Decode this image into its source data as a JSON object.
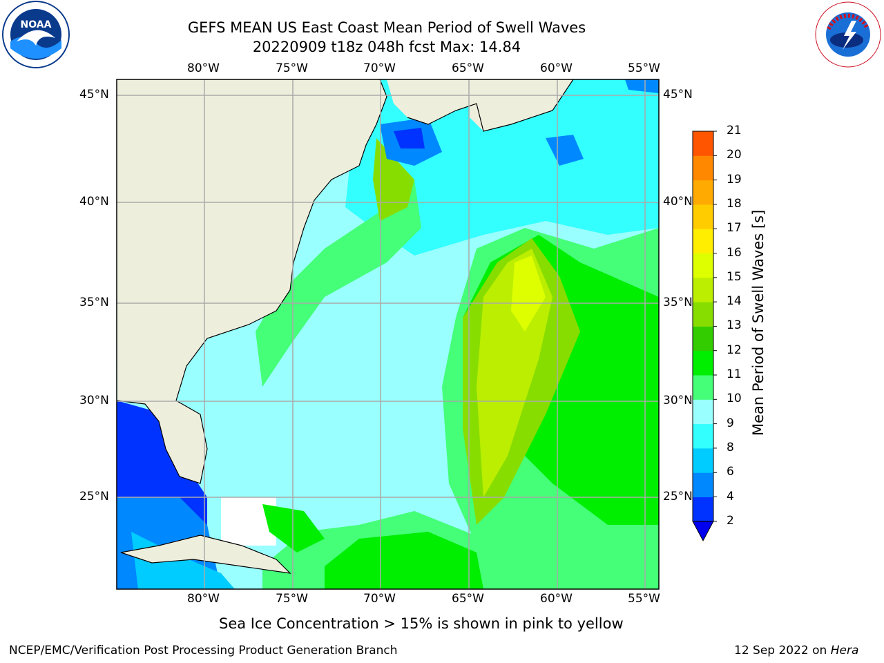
{
  "header": {
    "title_line1": "GEFS MEAN US East Coast Mean Period of Swell Waves",
    "title_line2": "20220909 t18z 048h fcst   Max: 14.84"
  },
  "logos": {
    "left": {
      "icon": "noaa-logo",
      "text": "NOAA"
    },
    "right": {
      "icon": "national-weather-service-logo",
      "text": "NATIONAL WEATHER SERVICE"
    }
  },
  "map": {
    "lon_labels": [
      "80°W",
      "75°W",
      "70°W",
      "65°W",
      "60°W",
      "55°W"
    ],
    "lat_labels": [
      "45°N",
      "40°N",
      "35°N",
      "30°N",
      "25°N"
    ],
    "colors": {
      "land": "#eeeedd",
      "grid": "#aaaaaa",
      "coast": "#000000"
    }
  },
  "colorbar": {
    "label": "Mean Period of Swell Waves [s]",
    "ticks": [
      "2",
      "4",
      "6",
      "8",
      "9",
      "10",
      "11",
      "12",
      "13",
      "14",
      "15",
      "16",
      "17",
      "18",
      "19",
      "20",
      "21"
    ],
    "colors": [
      "#0033ff",
      "#0088ff",
      "#00ccff",
      "#33ffff",
      "#99ffff",
      "#44ff77",
      "#00ee00",
      "#33cc00",
      "#88dd00",
      "#bbee00",
      "#ddff00",
      "#ffee00",
      "#ffcc00",
      "#ffaa00",
      "#ff8800",
      "#ff5500",
      "#ff2200",
      "#ff0000"
    ],
    "under_color": "#0000ee"
  },
  "caption": "Sea Ice Concentration > 15% is shown in pink to yellow",
  "footer": {
    "left": "NCEP/EMC/Verification Post Processing Product Generation Branch",
    "date": "12 Sep 2022 on",
    "machine": "Hera"
  }
}
